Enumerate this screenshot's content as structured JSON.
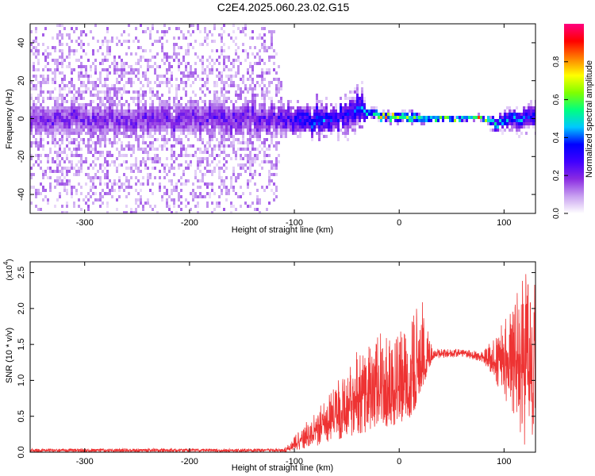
{
  "title": "C2E4.2025.060.23.02.G15",
  "chart_data": [
    {
      "type": "heatmap",
      "title": "C2E4.2025.060.23.02.G15",
      "xlabel": "Height of straight line (km)",
      "ylabel": "Frequency (Hz)",
      "xlim": [
        -352,
        130
      ],
      "ylim": [
        -50,
        50
      ],
      "xticks": [
        -300,
        -200,
        -100,
        0,
        100
      ],
      "yticks": [
        -40,
        -20,
        0,
        20,
        40
      ],
      "grid": false,
      "colorbar": {
        "label": "Normalized spectral amplitude",
        "range": [
          0,
          1
        ],
        "ticks": [
          "0.0",
          "0.2",
          "0.4",
          "0.6",
          "0.8"
        ],
        "tick_values": [
          0,
          0.2,
          0.4,
          0.6,
          0.8
        ],
        "colormap": [
          "#ffffff",
          "#c8a0f0",
          "#8a2be2",
          "#4000ff",
          "#0000ff",
          "#00c8ff",
          "#00ff80",
          "#80ff00",
          "#ffff00",
          "#ff8000",
          "#ff0000",
          "#ff0080"
        ]
      },
      "band_profile": [
        {
          "x": -352,
          "center_hz": 0,
          "core_halfwidth_hz": 7,
          "scatter_halfwidth_hz": 50,
          "peak_amplitude": 0.25
        },
        {
          "x": -120,
          "center_hz": 0,
          "core_halfwidth_hz": 7,
          "scatter_halfwidth_hz": 50,
          "peak_amplitude": 0.3
        },
        {
          "x": -110,
          "center_hz": 0,
          "core_halfwidth_hz": 6,
          "scatter_halfwidth_hz": 10,
          "peak_amplitude": 0.35
        },
        {
          "x": -80,
          "center_hz": -2,
          "core_halfwidth_hz": 6,
          "scatter_halfwidth_hz": 10,
          "peak_amplitude": 0.5
        },
        {
          "x": -60,
          "center_hz": 0,
          "core_halfwidth_hz": 5,
          "scatter_halfwidth_hz": 12,
          "peak_amplitude": 0.45
        },
        {
          "x": -35,
          "center_hz": 6,
          "core_halfwidth_hz": 7,
          "scatter_halfwidth_hz": 14,
          "peak_amplitude": 0.5
        },
        {
          "x": -30,
          "center_hz": 3,
          "core_halfwidth_hz": 2,
          "scatter_halfwidth_hz": 4,
          "peak_amplitude": 0.6
        },
        {
          "x": -15,
          "center_hz": 1,
          "core_halfwidth_hz": 2,
          "scatter_halfwidth_hz": 3,
          "peak_amplitude": 0.95
        },
        {
          "x": 15,
          "center_hz": 0,
          "core_halfwidth_hz": 2,
          "scatter_halfwidth_hz": 5,
          "peak_amplitude": 0.8
        },
        {
          "x": 30,
          "center_hz": 0,
          "core_halfwidth_hz": 1,
          "scatter_halfwidth_hz": 2,
          "peak_amplitude": 1.0
        },
        {
          "x": 80,
          "center_hz": 0,
          "core_halfwidth_hz": 1,
          "scatter_halfwidth_hz": 2,
          "peak_amplitude": 1.0
        },
        {
          "x": 90,
          "center_hz": -2,
          "core_halfwidth_hz": 3,
          "scatter_halfwidth_hz": 6,
          "peak_amplitude": 0.6
        },
        {
          "x": 130,
          "center_hz": 1,
          "core_halfwidth_hz": 5,
          "scatter_halfwidth_hz": 10,
          "peak_amplitude": 0.45
        }
      ]
    },
    {
      "type": "line",
      "xlabel": "Height of straight line (km)",
      "ylabel": "SNR (10 * v/v)",
      "y_multiplier": "(x10",
      "y_multiplier_exp": "4",
      "y_multiplier_close": ")",
      "xlim": [
        -352,
        130
      ],
      "ylim": [
        0,
        2.65
      ],
      "xticks": [
        -300,
        -200,
        -100,
        0,
        100
      ],
      "yticks": [
        "0.0",
        "0.5",
        "1.0",
        "1.5",
        "2.0",
        "2.5"
      ],
      "ytick_values": [
        0,
        0.5,
        1.0,
        1.5,
        2.0,
        2.5
      ],
      "grid": false,
      "series": [
        {
          "color": "#ee3333",
          "envelope": [
            {
              "x": -352,
              "low": 0.0,
              "mid": 0.03,
              "high": 0.05
            },
            {
              "x": -110,
              "low": 0.0,
              "mid": 0.03,
              "high": 0.05
            },
            {
              "x": -100,
              "low": 0.02,
              "mid": 0.08,
              "high": 0.22
            },
            {
              "x": -90,
              "low": 0.05,
              "mid": 0.2,
              "high": 0.4
            },
            {
              "x": -75,
              "low": 0.1,
              "mid": 0.35,
              "high": 0.65
            },
            {
              "x": -60,
              "low": 0.15,
              "mid": 0.5,
              "high": 0.95
            },
            {
              "x": -45,
              "low": 0.2,
              "mid": 0.7,
              "high": 1.35
            },
            {
              "x": -30,
              "low": 0.25,
              "mid": 0.85,
              "high": 1.5
            },
            {
              "x": -20,
              "low": 0.3,
              "mid": 0.95,
              "high": 1.65
            },
            {
              "x": -5,
              "low": 0.35,
              "mid": 0.9,
              "high": 1.7
            },
            {
              "x": 10,
              "low": 0.4,
              "mid": 1.0,
              "high": 1.75
            },
            {
              "x": 20,
              "low": 0.8,
              "mid": 1.1,
              "high": 2.25
            },
            {
              "x": 28,
              "low": 1.15,
              "mid": 1.3,
              "high": 1.65
            },
            {
              "x": 33,
              "low": 1.3,
              "mid": 1.38,
              "high": 1.45
            },
            {
              "x": 60,
              "low": 1.33,
              "mid": 1.38,
              "high": 1.43
            },
            {
              "x": 80,
              "low": 1.25,
              "mid": 1.32,
              "high": 1.4
            },
            {
              "x": 90,
              "low": 1.05,
              "mid": 1.25,
              "high": 1.6
            },
            {
              "x": 100,
              "low": 0.7,
              "mid": 1.3,
              "high": 1.85
            },
            {
              "x": 110,
              "low": 0.5,
              "mid": 1.35,
              "high": 2.1
            },
            {
              "x": 118,
              "low": 0.1,
              "mid": 1.2,
              "high": 2.55
            },
            {
              "x": 125,
              "low": 0.1,
              "mid": 1.3,
              "high": 2.5
            },
            {
              "x": 130,
              "low": 0.05,
              "mid": 1.2,
              "high": 2.6
            }
          ]
        }
      ]
    }
  ]
}
